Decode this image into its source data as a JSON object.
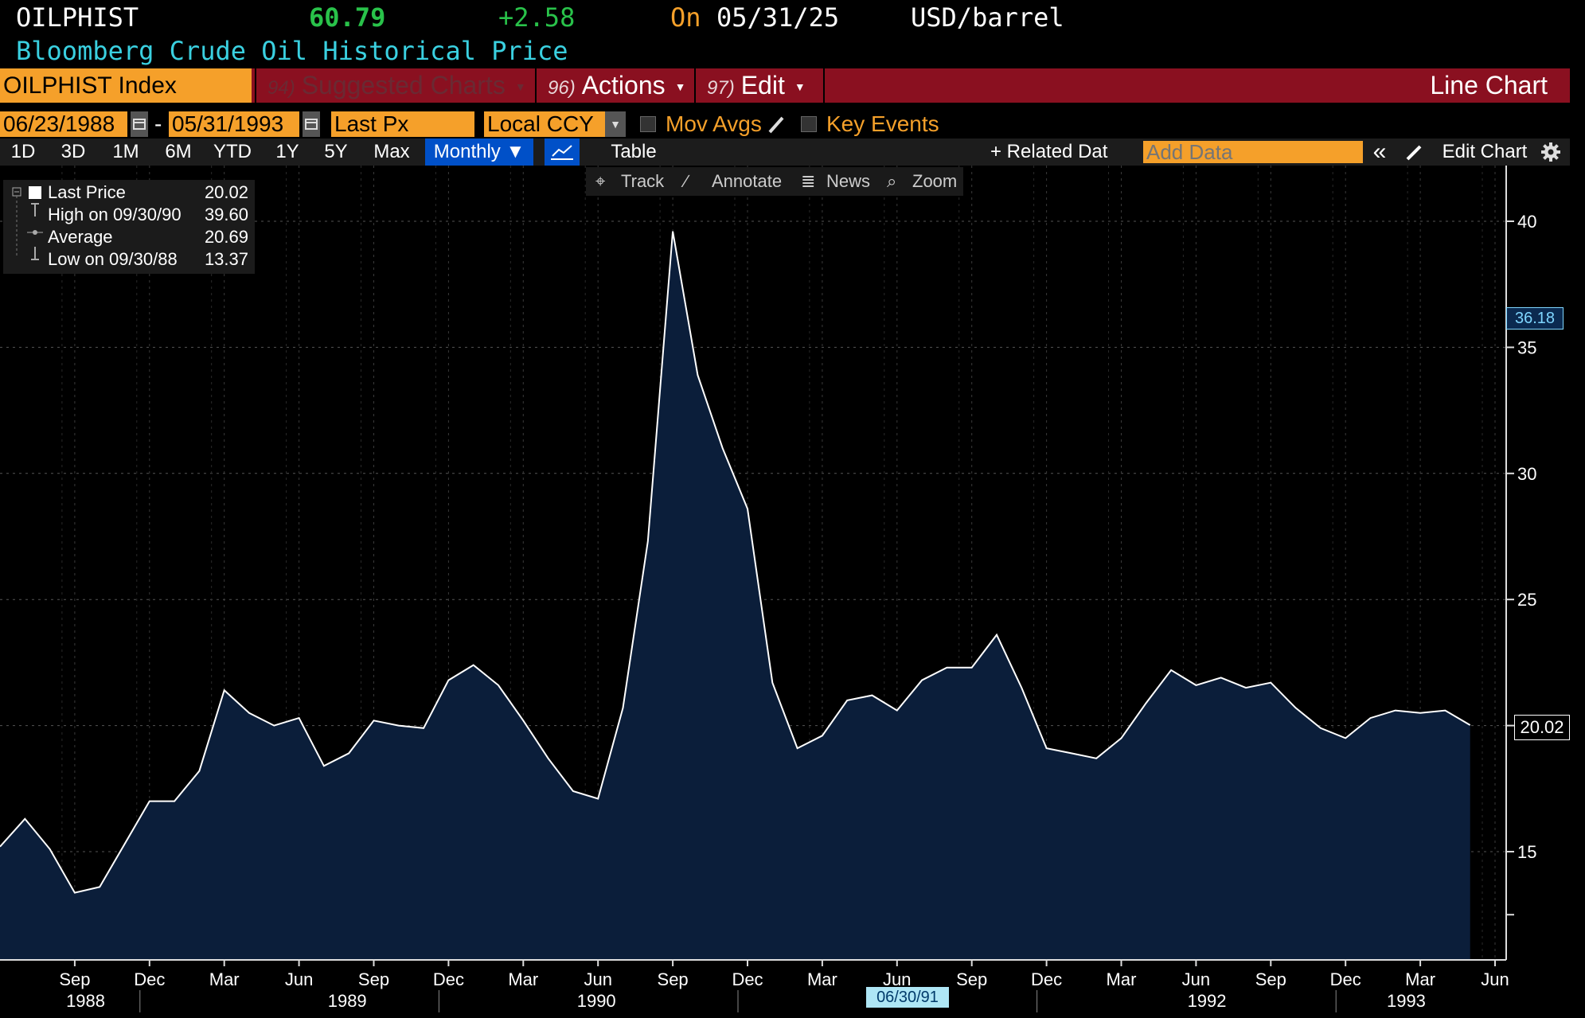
{
  "header": {
    "ticker": "OILPHIST",
    "price": "60.79",
    "change": "+2.58",
    "on_label": "On",
    "date": "05/31/25",
    "unit": "USD/barrel",
    "subtitle": "Bloomberg Crude Oil Historical Price",
    "colors": {
      "price": "#29c24a",
      "subtitle": "#3ad0e0",
      "on": "#f5a02a"
    }
  },
  "toolbar": {
    "security": "OILPHIST Index",
    "suggested": {
      "num": "94)",
      "label": "Suggested Charts"
    },
    "actions": {
      "num": "96)",
      "label": "Actions"
    },
    "edit": {
      "num": "97)",
      "label": "Edit"
    },
    "chart_type": "Line Chart"
  },
  "controls": {
    "start_date": "06/23/1988",
    "dash": "-",
    "end_date": "05/31/1993",
    "field": "Last Px",
    "currency": "Local CCY",
    "mov_avgs": "Mov Avgs",
    "key_events": "Key Events"
  },
  "periods": {
    "items": [
      "1D",
      "3D",
      "1M",
      "6M",
      "YTD",
      "1Y",
      "5Y",
      "Max"
    ],
    "frequency": "Monthly ▼",
    "table": "Table",
    "related": "+ Related Dat",
    "add_data_placeholder": "Add Data",
    "collapse": "«",
    "edit_chart": "Edit Chart",
    "settings_icon": "gear-icon"
  },
  "chart_tools": {
    "track": "Track",
    "annotate": "Annotate",
    "news": "News",
    "zoom": "Zoom"
  },
  "legend": {
    "last_label": "Last Price",
    "last_value": "20.02",
    "high_label": "High on 09/30/90",
    "high_value": "39.60",
    "avg_label": "Average",
    "avg_value": "20.69",
    "low_label": "Low on 09/30/88",
    "low_value": "13.37"
  },
  "axis_tags": {
    "crosshair": "36.18",
    "last": "20.02",
    "date_marker": "06/30/91"
  },
  "chart_data": {
    "type": "area",
    "series": [
      {
        "name": "Last Price",
        "x": [
          "1988-06",
          "1988-07",
          "1988-08",
          "1988-09",
          "1988-10",
          "1988-11",
          "1988-12",
          "1989-01",
          "1989-02",
          "1989-03",
          "1989-04",
          "1989-05",
          "1989-06",
          "1989-07",
          "1989-08",
          "1989-09",
          "1989-10",
          "1989-11",
          "1989-12",
          "1990-01",
          "1990-02",
          "1990-03",
          "1990-04",
          "1990-05",
          "1990-06",
          "1990-07",
          "1990-08",
          "1990-09",
          "1990-10",
          "1990-11",
          "1990-12",
          "1991-01",
          "1991-02",
          "1991-03",
          "1991-04",
          "1991-05",
          "1991-06",
          "1991-07",
          "1991-08",
          "1991-09",
          "1991-10",
          "1991-11",
          "1991-12",
          "1992-01",
          "1992-02",
          "1992-03",
          "1992-04",
          "1992-05",
          "1992-06",
          "1992-07",
          "1992-08",
          "1992-09",
          "1992-10",
          "1992-11",
          "1992-12",
          "1993-01",
          "1993-02",
          "1993-03",
          "1993-04",
          "1993-05"
        ],
        "values": [
          15.2,
          16.3,
          15.1,
          13.37,
          13.6,
          15.3,
          17.0,
          17.0,
          18.2,
          21.4,
          20.5,
          20.0,
          20.3,
          18.4,
          18.9,
          20.2,
          20.0,
          19.9,
          21.8,
          22.4,
          21.6,
          20.2,
          18.7,
          17.4,
          17.1,
          20.7,
          27.3,
          39.6,
          33.9,
          31.0,
          28.6,
          21.7,
          19.1,
          19.6,
          21.0,
          21.2,
          20.6,
          21.8,
          22.3,
          22.3,
          23.6,
          21.5,
          19.1,
          18.9,
          18.7,
          19.5,
          20.9,
          22.2,
          21.6,
          21.9,
          21.5,
          21.7,
          20.7,
          19.9,
          19.5,
          20.3,
          20.6,
          20.5,
          20.6,
          20.02
        ]
      }
    ],
    "x_tick_months": [
      "Sep",
      "Dec",
      "Mar",
      "Jun",
      "Sep",
      "Dec",
      "Mar",
      "Jun",
      "Sep",
      "Dec",
      "Mar",
      "Jun",
      "Sep",
      "Dec",
      "Mar",
      "Jun",
      "Sep",
      "Dec",
      "Mar",
      "Jun"
    ],
    "x_tick_years": [
      "1988",
      "1989",
      "1990",
      "1992",
      "1993"
    ],
    "y_ticks": [
      15,
      20,
      25,
      30,
      35,
      40
    ],
    "ylim": [
      11.6,
      42
    ],
    "grid": true,
    "colors": {
      "line": "#ffffff",
      "fill": "#0b1e3a"
    }
  }
}
